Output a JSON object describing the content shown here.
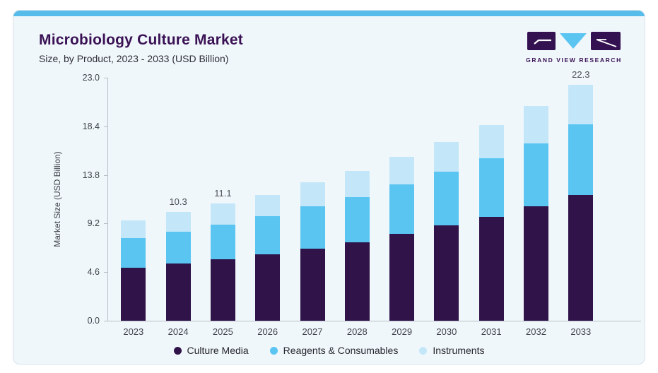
{
  "header": {
    "title": "Microbiology Culture Market",
    "subtitle": "Size, by Product, 2023 - 2033 (USD Billion)",
    "logo_text": "GRAND VIEW RESEARCH"
  },
  "colors": {
    "title_purple": "#3a1254",
    "card_bg": "#f0f7fb",
    "card_border": "#d9e3ec",
    "top_accent": "#57bce9",
    "axis": "#b6bfc7",
    "tick_text": "#3f434b",
    "logo_purple": "#341150",
    "logo_blue": "#5bc5f2"
  },
  "chart_data": {
    "type": "bar",
    "stacked": true,
    "title": "Microbiology Culture Market Size, by Product, 2023 - 2033 (USD Billion)",
    "xlabel": "",
    "ylabel": "Market Size (USD Billion)",
    "categories": [
      "2023",
      "2024",
      "2025",
      "2026",
      "2027",
      "2028",
      "2029",
      "2030",
      "2031",
      "2032",
      "2033"
    ],
    "series": [
      {
        "name": "Culture Media",
        "color": "#2f1349",
        "values": [
          5.0,
          5.4,
          5.8,
          6.3,
          6.8,
          7.4,
          8.2,
          9.0,
          9.8,
          10.8,
          11.9
        ]
      },
      {
        "name": "Reagents & Consumables",
        "color": "#5bc5f2",
        "values": [
          2.8,
          3.0,
          3.3,
          3.6,
          4.0,
          4.3,
          4.7,
          5.1,
          5.6,
          6.0,
          6.7
        ]
      },
      {
        "name": "Instruments",
        "color": "#c3e7f9",
        "values": [
          1.7,
          1.9,
          2.0,
          2.0,
          2.3,
          2.5,
          2.6,
          2.8,
          3.1,
          3.5,
          3.7
        ]
      }
    ],
    "totals": [
      9.5,
      10.3,
      11.1,
      11.9,
      13.1,
      14.2,
      15.5,
      16.9,
      18.5,
      20.3,
      22.3
    ],
    "bar_value_labels": [
      "",
      "10.3",
      "11.1",
      "",
      "",
      "",
      "",
      "",
      "",
      "",
      "22.3"
    ],
    "y_ticks": [
      "0.0",
      "4.6",
      "9.2",
      "13.8",
      "18.4",
      "23.0"
    ],
    "ylim": [
      0,
      23.0
    ],
    "grid": false,
    "legend_position": "bottom"
  }
}
